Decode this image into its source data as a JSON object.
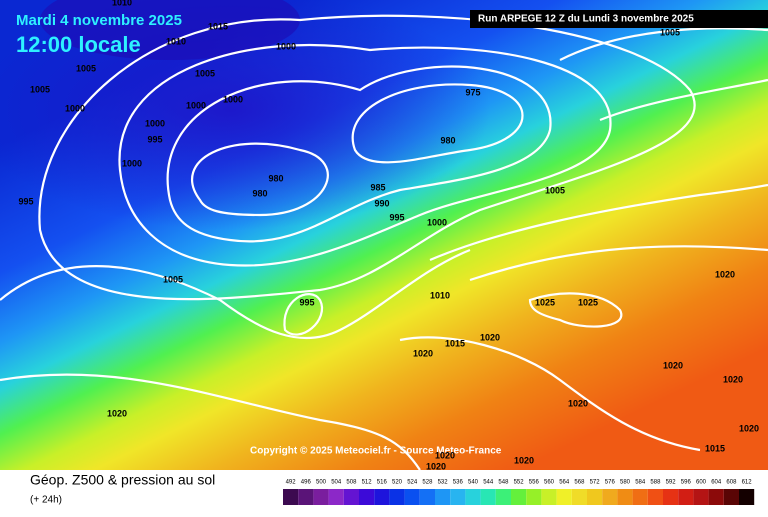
{
  "header": {
    "date": "Mardi 4 novembre 2025",
    "time": "12:00 locale",
    "run": "Run ARPEGE 12 Z du Lundi 3 novembre 2025"
  },
  "copyright": "Copyright © 2025 Meteociel.fr - Source Meteo-France",
  "footer": {
    "title": "Géop. Z500 & pression au sol",
    "subtitle": "(+ 24h)"
  },
  "isobar_labels": [
    1010,
    1015,
    1010,
    1000,
    1005,
    1005,
    1000,
    1000,
    1005,
    1000,
    1000,
    995,
    1000,
    975,
    980,
    980,
    980,
    985,
    990,
    995,
    1000,
    1005,
    995,
    1005,
    995,
    1010,
    1025,
    1025,
    1020,
    1020,
    1015,
    1020,
    1020,
    1020,
    1020,
    1020,
    1020,
    1020,
    1020,
    1015,
    1020,
    1005
  ],
  "color_scale": {
    "values": [
      492,
      496,
      500,
      504,
      508,
      512,
      516,
      520,
      524,
      528,
      532,
      536,
      540,
      544,
      548,
      552,
      556,
      560,
      564,
      568,
      572,
      576,
      580,
      584,
      588,
      592,
      596,
      600,
      604,
      608,
      612
    ],
    "colors": [
      "#3c0a50",
      "#5a1478",
      "#7a1e9e",
      "#8c28c8",
      "#6414d2",
      "#3c0ad8",
      "#1e14dc",
      "#0a32e6",
      "#0a50f0",
      "#1470f5",
      "#1e96f5",
      "#28b4f0",
      "#28d2dc",
      "#28e6b4",
      "#3cf078",
      "#64f03c",
      "#96f028",
      "#c8f028",
      "#f0f028",
      "#f0dc28",
      "#f0c81e",
      "#f0aa1e",
      "#f08c14",
      "#f06e14",
      "#f05014",
      "#e63214",
      "#d21e14",
      "#b41414",
      "#8c0a0a",
      "#5a0505",
      "#140000"
    ]
  }
}
